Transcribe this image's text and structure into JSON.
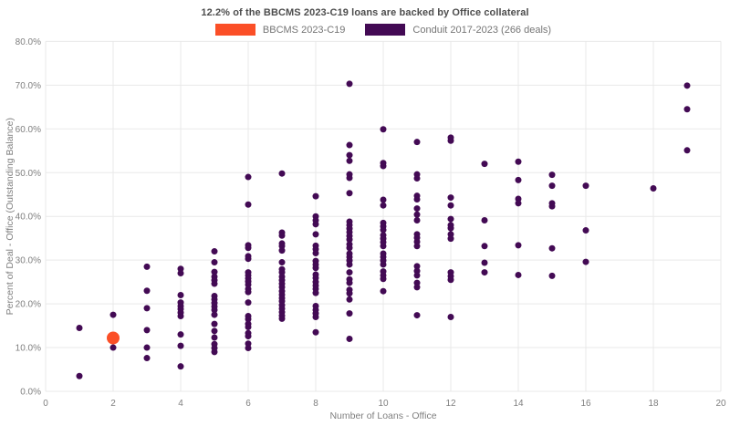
{
  "title": "12.2% of the BBCMS 2023-C19 loans are backed by Office collateral",
  "legend": {
    "items": [
      {
        "label": "BBCMS 2023-C19",
        "color": "#fb4f27"
      },
      {
        "label": "Conduit 2017-2023 (266 deals)",
        "color": "#430a54"
      }
    ]
  },
  "colors": {
    "background": "#ffffff",
    "grid": "#e9e9e9",
    "tick_text": "#7f7f7f",
    "axis_title_text": "#7f7f7f",
    "title_text": "#4d4d4d",
    "legend_text": "#757575",
    "bbcms": "#fb4f27",
    "conduit": "#430a54"
  },
  "chart_data": {
    "type": "scatter",
    "title": "12.2% of the BBCMS 2023-C19 loans are backed by Office collateral",
    "xlabel": "Number of Loans - Office",
    "ylabel": "Percent of Deal - Office (Outstanding Balance)",
    "xlim": [
      0,
      20
    ],
    "ylim": [
      0,
      80
    ],
    "grid": true,
    "legend_position": "top-center",
    "x_ticks": [
      0,
      2,
      4,
      6,
      8,
      10,
      12,
      14,
      16,
      18,
      20
    ],
    "x_tick_labels": [
      "0",
      "2",
      "4",
      "6",
      "8",
      "10",
      "12",
      "14",
      "16",
      "18",
      "20"
    ],
    "y_ticks": [
      0,
      10,
      20,
      30,
      40,
      50,
      60,
      70,
      80
    ],
    "y_tick_labels": [
      "0.0%",
      "10.0%",
      "20.0%",
      "30.0%",
      "40.0%",
      "50.0%",
      "60.0%",
      "70.0%",
      "80.0%"
    ],
    "series": [
      {
        "name": "BBCMS 2023-C19",
        "color": "#fb4f27",
        "marker_size": 14,
        "points": [
          [
            2,
            12.2
          ]
        ]
      },
      {
        "name": "Conduit 2017-2023 (266 deals)",
        "color": "#430a54",
        "marker_size": 7,
        "points": [
          [
            1,
            14.5
          ],
          [
            1,
            3.5
          ],
          [
            2,
            17.5
          ],
          [
            2,
            10
          ],
          [
            3,
            28.5
          ],
          [
            3,
            23
          ],
          [
            3,
            19
          ],
          [
            3,
            14
          ],
          [
            3,
            10
          ],
          [
            3,
            7.6
          ],
          [
            4,
            28
          ],
          [
            4,
            27
          ],
          [
            4,
            22
          ],
          [
            4,
            20.3
          ],
          [
            4,
            19.5
          ],
          [
            4,
            18.8
          ],
          [
            4,
            18
          ],
          [
            4,
            17.2
          ],
          [
            4,
            13
          ],
          [
            4,
            10.4
          ],
          [
            4,
            5.7
          ],
          [
            5,
            32
          ],
          [
            5,
            29.5
          ],
          [
            5,
            27.3
          ],
          [
            5,
            26.2
          ],
          [
            5,
            25.4
          ],
          [
            5,
            24.6
          ],
          [
            5,
            21.8
          ],
          [
            5,
            21
          ],
          [
            5,
            20.2
          ],
          [
            5,
            19.4
          ],
          [
            5,
            18.6
          ],
          [
            5,
            17.5
          ],
          [
            5,
            15.4
          ],
          [
            5,
            13.8
          ],
          [
            5,
            12.3
          ],
          [
            5,
            10.8
          ],
          [
            5,
            9.9
          ],
          [
            5,
            9
          ],
          [
            6,
            49
          ],
          [
            6,
            42.7
          ],
          [
            6,
            33.4
          ],
          [
            6,
            32.8
          ],
          [
            6,
            30.9
          ],
          [
            6,
            30.3
          ],
          [
            6,
            27.2
          ],
          [
            6,
            26.5
          ],
          [
            6,
            25.8
          ],
          [
            6,
            25.1
          ],
          [
            6,
            24.4
          ],
          [
            6,
            23.4
          ],
          [
            6,
            22.7
          ],
          [
            6,
            20.3
          ],
          [
            6,
            17.2
          ],
          [
            6,
            16.5
          ],
          [
            6,
            15.4
          ],
          [
            6,
            14.7
          ],
          [
            6,
            13.3
          ],
          [
            6,
            12.6
          ],
          [
            6,
            10.9
          ],
          [
            6,
            9.9
          ],
          [
            7,
            49.8
          ],
          [
            7,
            36.3
          ],
          [
            7,
            35.6
          ],
          [
            7,
            33.8
          ],
          [
            7,
            33.2
          ],
          [
            7,
            32.2
          ],
          [
            7,
            29.5
          ],
          [
            7,
            27.9
          ],
          [
            7,
            27.2
          ],
          [
            7,
            26.2
          ],
          [
            7,
            25.4
          ],
          [
            7,
            24.6
          ],
          [
            7,
            23.8
          ],
          [
            7,
            22.9
          ],
          [
            7,
            22.1
          ],
          [
            7,
            21.3
          ],
          [
            7,
            20.6
          ],
          [
            7,
            19.7
          ],
          [
            7,
            18.9
          ],
          [
            7,
            18.1
          ],
          [
            7,
            17.3
          ],
          [
            7,
            16.6
          ],
          [
            8,
            44.6
          ],
          [
            8,
            40
          ],
          [
            8,
            39.1
          ],
          [
            8,
            38.2
          ],
          [
            8,
            35.9
          ],
          [
            8,
            33.3
          ],
          [
            8,
            32.5
          ],
          [
            8,
            31.6
          ],
          [
            8,
            29.8
          ],
          [
            8,
            29
          ],
          [
            8,
            28.2
          ],
          [
            8,
            26.7
          ],
          [
            8,
            25.9
          ],
          [
            8,
            25
          ],
          [
            8,
            24.2
          ],
          [
            8,
            23.4
          ],
          [
            8,
            22.5
          ],
          [
            8,
            19.5
          ],
          [
            8,
            18.6
          ],
          [
            8,
            17.8
          ],
          [
            8,
            17
          ],
          [
            8,
            13.5
          ],
          [
            9,
            70.3
          ],
          [
            9,
            56.3
          ],
          [
            9,
            54
          ],
          [
            9,
            52.7
          ],
          [
            9,
            49.6
          ],
          [
            9,
            48.8
          ],
          [
            9,
            45.3
          ],
          [
            9,
            38.8
          ],
          [
            9,
            38
          ],
          [
            9,
            37.2
          ],
          [
            9,
            36.4
          ],
          [
            9,
            35.5
          ],
          [
            9,
            34.7
          ],
          [
            9,
            33.6
          ],
          [
            9,
            32.8
          ],
          [
            9,
            31.5
          ],
          [
            9,
            30.7
          ],
          [
            9,
            29.9
          ],
          [
            9,
            29
          ],
          [
            9,
            27.2
          ],
          [
            9,
            25.6
          ],
          [
            9,
            24.8
          ],
          [
            9,
            23.2
          ],
          [
            9,
            22.4
          ],
          [
            9,
            21
          ],
          [
            9,
            17.8
          ],
          [
            9,
            12
          ],
          [
            10,
            59.9
          ],
          [
            10,
            52.2
          ],
          [
            10,
            51.5
          ],
          [
            10,
            43.8
          ],
          [
            10,
            42.5
          ],
          [
            10,
            38.5
          ],
          [
            10,
            37.7
          ],
          [
            10,
            36.9
          ],
          [
            10,
            35.7
          ],
          [
            10,
            34.9
          ],
          [
            10,
            34.1
          ],
          [
            10,
            33.2
          ],
          [
            10,
            31.5
          ],
          [
            10,
            30.7
          ],
          [
            10,
            29.9
          ],
          [
            10,
            29
          ],
          [
            10,
            27.4
          ],
          [
            10,
            26.5
          ],
          [
            10,
            25.7
          ],
          [
            10,
            22.9
          ],
          [
            11,
            57
          ],
          [
            11,
            49.6
          ],
          [
            11,
            48.7
          ],
          [
            11,
            44.7
          ],
          [
            11,
            43.9
          ],
          [
            11,
            41.8
          ],
          [
            11,
            40.4
          ],
          [
            11,
            39.1
          ],
          [
            11,
            35.9
          ],
          [
            11,
            35.1
          ],
          [
            11,
            34.2
          ],
          [
            11,
            33.2
          ],
          [
            11,
            28.6
          ],
          [
            11,
            27.5
          ],
          [
            11,
            26.5
          ],
          [
            11,
            24.8
          ],
          [
            11,
            23.8
          ],
          [
            11,
            17.4
          ],
          [
            12,
            58
          ],
          [
            12,
            57.3
          ],
          [
            12,
            44.3
          ],
          [
            12,
            42.5
          ],
          [
            12,
            39.4
          ],
          [
            12,
            38
          ],
          [
            12,
            37.3
          ],
          [
            12,
            35.9
          ],
          [
            12,
            34.9
          ],
          [
            12,
            27.2
          ],
          [
            12,
            26.3
          ],
          [
            12,
            25.5
          ],
          [
            12,
            17
          ],
          [
            13,
            52
          ],
          [
            13,
            39.1
          ],
          [
            13,
            33.2
          ],
          [
            13,
            29.4
          ],
          [
            13,
            27.2
          ],
          [
            14,
            52.5
          ],
          [
            14,
            48.3
          ],
          [
            14,
            44
          ],
          [
            14,
            43
          ],
          [
            14,
            33.4
          ],
          [
            14,
            26.6
          ],
          [
            15,
            49.5
          ],
          [
            15,
            47
          ],
          [
            15,
            43
          ],
          [
            15,
            42.3
          ],
          [
            15,
            32.7
          ],
          [
            15,
            26.4
          ],
          [
            16,
            47
          ],
          [
            16,
            36.8
          ],
          [
            16,
            29.6
          ],
          [
            18,
            46.4
          ],
          [
            19,
            69.9
          ],
          [
            19,
            64.5
          ],
          [
            19,
            55.1
          ]
        ]
      }
    ]
  }
}
